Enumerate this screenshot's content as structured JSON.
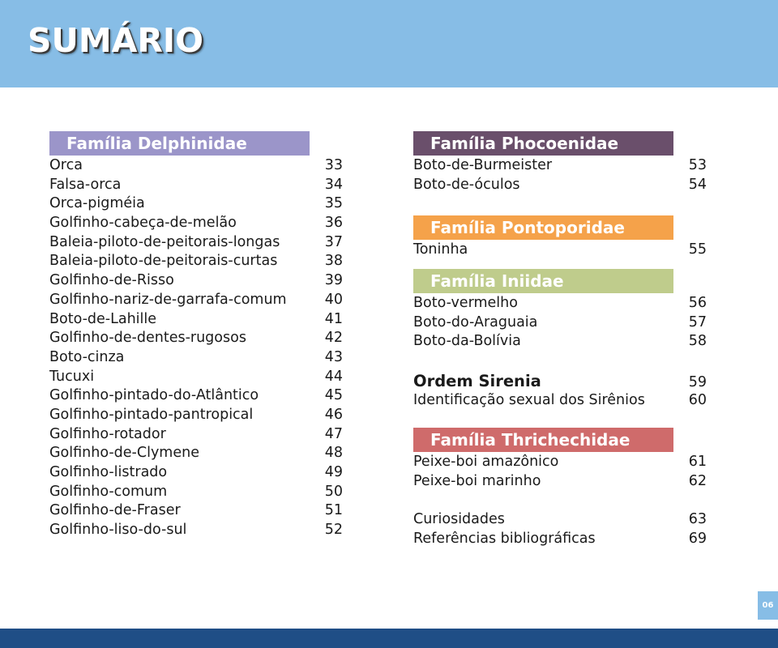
{
  "title": "SUMÁRIO",
  "page_number": "06",
  "colors": {
    "header": "#87bde6",
    "footer": "#1f4e86",
    "delphinidae": "#9b95c9",
    "phocoenidae": "#6a4f6b",
    "pontoporidae": "#f5a24a",
    "iniidae": "#bfcc8c",
    "thrichechidae": "#cf6b6b"
  },
  "left": {
    "family": "Família Delphinidae",
    "items": [
      {
        "name": "Orca",
        "page": "33"
      },
      {
        "name": "Falsa-orca",
        "page": "34"
      },
      {
        "name": "Orca-pigméia",
        "page": "35"
      },
      {
        "name": "Golfinho-cabeça-de-melão",
        "page": "36"
      },
      {
        "name": "Baleia-piloto-de-peitorais-longas",
        "page": "37"
      },
      {
        "name": "Baleia-piloto-de-peitorais-curtas",
        "page": "38"
      },
      {
        "name": "Golfinho-de-Risso",
        "page": "39"
      },
      {
        "name": "Golfinho-nariz-de-garrafa-comum",
        "page": "40"
      },
      {
        "name": "Boto-de-Lahille",
        "page": "41"
      },
      {
        "name": "Golfinho-de-dentes-rugosos",
        "page": "42"
      },
      {
        "name": "Boto-cinza",
        "page": "43"
      },
      {
        "name": "Tucuxi",
        "page": "44"
      },
      {
        "name": "Golfinho-pintado-do-Atlântico",
        "page": "45"
      },
      {
        "name": "Golfinho-pintado-pantropical",
        "page": "46"
      },
      {
        "name": "Golfinho-rotador",
        "page": "47"
      },
      {
        "name": "Golfinho-de-Clymene",
        "page": "48"
      },
      {
        "name": "Golfinho-listrado",
        "page": "49"
      },
      {
        "name": "Golfinho-comum",
        "page": "50"
      },
      {
        "name": "Golfinho-de-Fraser",
        "page": "51"
      },
      {
        "name": "Golfinho-liso-do-sul",
        "page": "52"
      }
    ]
  },
  "right": {
    "phocoenidae": {
      "family": "Família Phocoenidae",
      "items": [
        {
          "name": "Boto-de-Burmeister",
          "page": "53"
        },
        {
          "name": "Boto-de-óculos",
          "page": "54"
        }
      ]
    },
    "pontoporidae": {
      "family": "Família Pontoporidae",
      "items": [
        {
          "name": "Toninha",
          "page": "55"
        }
      ]
    },
    "iniidae": {
      "family": "Família Iniidae",
      "items": [
        {
          "name": "Boto-vermelho",
          "page": "56"
        },
        {
          "name": "Boto-do-Araguaia",
          "page": "57"
        },
        {
          "name": "Boto-da-Bolívia",
          "page": "58"
        }
      ]
    },
    "sirenia": {
      "order": "Ordem Sirenia",
      "page": "59",
      "items": [
        {
          "name": "Identificação sexual dos Sirênios",
          "page": "60"
        }
      ]
    },
    "thrichechidae": {
      "family": "Família Thrichechidae",
      "items": [
        {
          "name": "Peixe-boi amazônico",
          "page": "61"
        },
        {
          "name": "Peixe-boi marinho",
          "page": "62"
        }
      ]
    },
    "extras": [
      {
        "name": "Curiosidades",
        "page": "63"
      },
      {
        "name": "Referências bibliográficas",
        "page": "69"
      }
    ]
  }
}
